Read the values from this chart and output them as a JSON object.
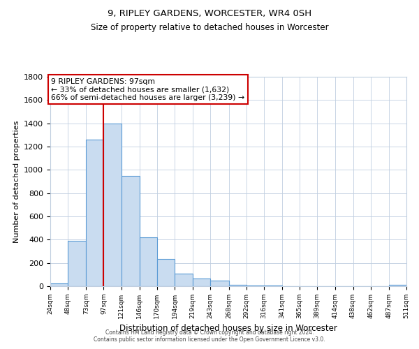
{
  "title": "9, RIPLEY GARDENS, WORCESTER, WR4 0SH",
  "subtitle": "Size of property relative to detached houses in Worcester",
  "xlabel": "Distribution of detached houses by size in Worcester",
  "ylabel": "Number of detached properties",
  "bar_edges": [
    24,
    48,
    73,
    97,
    121,
    146,
    170,
    194,
    219,
    243,
    268,
    292,
    316,
    341,
    365,
    389,
    414,
    438,
    462,
    487,
    511
  ],
  "bar_heights": [
    25,
    390,
    1260,
    1400,
    950,
    420,
    235,
    110,
    65,
    50,
    15,
    5,
    5,
    3,
    3,
    3,
    0,
    0,
    0,
    15
  ],
  "bar_color": "#c9dcf0",
  "bar_edge_color": "#5b9bd5",
  "vline_x": 97,
  "vline_color": "#cc0000",
  "ylim": [
    0,
    1800
  ],
  "yticks": [
    0,
    200,
    400,
    600,
    800,
    1000,
    1200,
    1400,
    1600,
    1800
  ],
  "annotation_title": "9 RIPLEY GARDENS: 97sqm",
  "annotation_line1": "← 33% of detached houses are smaller (1,632)",
  "annotation_line2": "66% of semi-detached houses are larger (3,239) →",
  "annotation_box_color": "#ffffff",
  "annotation_box_edge": "#cc0000",
  "tick_labels": [
    "24sqm",
    "48sqm",
    "73sqm",
    "97sqm",
    "121sqm",
    "146sqm",
    "170sqm",
    "194sqm",
    "219sqm",
    "243sqm",
    "268sqm",
    "292sqm",
    "316sqm",
    "341sqm",
    "365sqm",
    "389sqm",
    "414sqm",
    "438sqm",
    "462sqm",
    "487sqm",
    "511sqm"
  ],
  "footer1": "Contains HM Land Registry data © Crown copyright and database right 2024.",
  "footer2": "Contains public sector information licensed under the Open Government Licence v3.0.",
  "background_color": "#ffffff",
  "grid_color": "#c0cfe0"
}
